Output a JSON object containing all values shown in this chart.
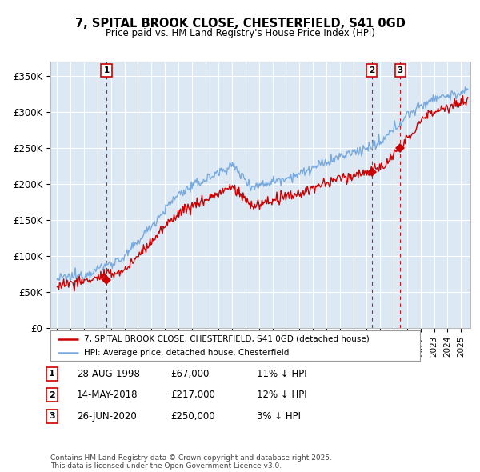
{
  "title": "7, SPITAL BROOK CLOSE, CHESTERFIELD, S41 0GD",
  "subtitle": "Price paid vs. HM Land Registry's House Price Index (HPI)",
  "ylim": [
    0,
    370000
  ],
  "yticks": [
    0,
    50000,
    100000,
    150000,
    200000,
    250000,
    300000,
    350000
  ],
  "ytick_labels": [
    "£0",
    "£50K",
    "£100K",
    "£150K",
    "£200K",
    "£250K",
    "£300K",
    "£350K"
  ],
  "xlim_start": 1994.5,
  "xlim_end": 2025.7,
  "plot_bg_color": "#dce9f5",
  "grid_color": "#ffffff",
  "red_line_color": "#cc0000",
  "blue_line_color": "#7aaadd",
  "transactions": [
    {
      "num": 1,
      "year": 1998.66,
      "price": 67000,
      "date": "28-AUG-1998",
      "amount": "£67,000",
      "hpi_diff": "11% ↓ HPI"
    },
    {
      "num": 2,
      "year": 2018.37,
      "price": 217000,
      "date": "14-MAY-2018",
      "amount": "£217,000",
      "hpi_diff": "12% ↓ HPI"
    },
    {
      "num": 3,
      "year": 2020.49,
      "price": 250000,
      "date": "26-JUN-2020",
      "amount": "£250,000",
      "hpi_diff": "3% ↓ HPI"
    }
  ],
  "legend_entries": [
    "7, SPITAL BROOK CLOSE, CHESTERFIELD, S41 0GD (detached house)",
    "HPI: Average price, detached house, Chesterfield"
  ],
  "footer": "Contains HM Land Registry data © Crown copyright and database right 2025.\nThis data is licensed under the Open Government Licence v3.0."
}
